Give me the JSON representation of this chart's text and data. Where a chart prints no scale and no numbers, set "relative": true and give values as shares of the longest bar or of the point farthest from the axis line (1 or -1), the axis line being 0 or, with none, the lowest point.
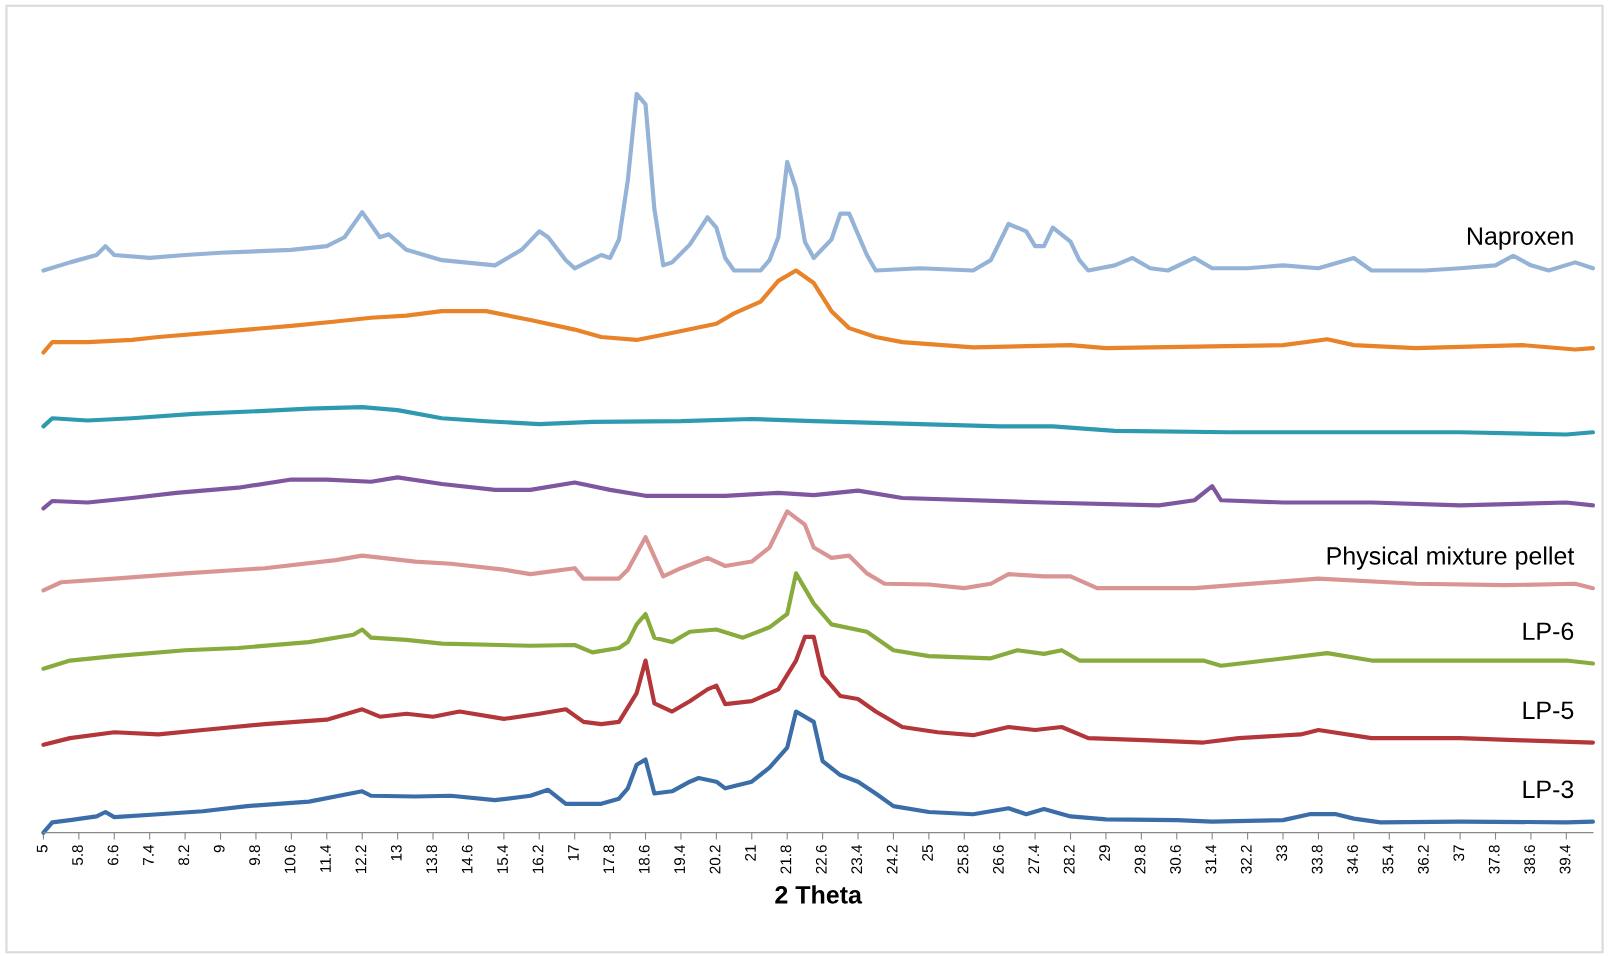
{
  "chart_data": {
    "type": "line",
    "relative": true,
    "xlabel": "2 Theta",
    "xlim": [
      5,
      40
    ],
    "xticks": [
      5,
      5.8,
      6.6,
      7.4,
      8.2,
      9,
      9.8,
      10.6,
      11.4,
      12.2,
      13,
      13.8,
      14.6,
      15.4,
      16.2,
      17,
      17.8,
      18.6,
      19.4,
      20.2,
      21,
      21.8,
      22.6,
      23.4,
      24.2,
      25,
      25.8,
      26.6,
      27.4,
      28.2,
      29,
      29.8,
      30.6,
      31.4,
      32.2,
      33,
      33.8,
      34.6,
      35.4,
      36.2,
      37,
      37.8,
      38.6,
      39.4
    ],
    "grid": false,
    "legend": false,
    "marker": "none",
    "line_style": "solid",
    "series": [
      {
        "name": "Naproxen",
        "color": "#95b3d7",
        "x": [
          5,
          5.6,
          6.2,
          6.4,
          6.6,
          7.4,
          8.2,
          9,
          10.6,
          11.4,
          11.8,
          12.2,
          12.6,
          12.8,
          13.2,
          14,
          15.2,
          15.8,
          16.2,
          16.4,
          16.8,
          17,
          17.6,
          17.8,
          18,
          18.2,
          18.4,
          18.6,
          18.8,
          19,
          19.2,
          19.6,
          20,
          20.2,
          20.4,
          20.6,
          21.2,
          21.4,
          21.6,
          21.8,
          22,
          22.2,
          22.4,
          22.8,
          23,
          23.2,
          23.6,
          23.8,
          24.8,
          26,
          26.4,
          26.8,
          27.2,
          27.4,
          27.6,
          27.8,
          28.2,
          28.4,
          28.6,
          29.2,
          29.6,
          30,
          30.4,
          31,
          31.4,
          32.2,
          33,
          33.8,
          34.6,
          35,
          36.2,
          37,
          37.8,
          38.2,
          38.6,
          39,
          39.6,
          40
        ],
        "values": [
          0.761,
          0.772,
          0.782,
          0.794,
          0.782,
          0.778,
          0.782,
          0.785,
          0.789,
          0.794,
          0.806,
          0.84,
          0.806,
          0.81,
          0.789,
          0.775,
          0.768,
          0.789,
          0.814,
          0.806,
          0.775,
          0.764,
          0.782,
          0.778,
          0.803,
          0.883,
          1.0,
          0.986,
          0.844,
          0.768,
          0.772,
          0.796,
          0.833,
          0.819,
          0.778,
          0.761,
          0.761,
          0.775,
          0.806,
          0.908,
          0.872,
          0.8,
          0.778,
          0.803,
          0.838,
          0.838,
          0.782,
          0.761,
          0.764,
          0.761,
          0.775,
          0.824,
          0.814,
          0.794,
          0.794,
          0.819,
          0.8,
          0.775,
          0.761,
          0.768,
          0.778,
          0.764,
          0.761,
          0.778,
          0.764,
          0.764,
          0.768,
          0.764,
          0.778,
          0.761,
          0.761,
          0.764,
          0.768,
          0.781,
          0.768,
          0.761,
          0.772,
          0.764
        ]
      },
      {
        "color": "#e8832a",
        "x": [
          5,
          5.2,
          6,
          7,
          7.6,
          9,
          10.6,
          11.6,
          12.4,
          13.2,
          14,
          15,
          16,
          17,
          17.6,
          18.4,
          19,
          20.2,
          20.6,
          21.2,
          21.6,
          22,
          22.4,
          22.8,
          23.2,
          23.8,
          24.4,
          26,
          28.2,
          29,
          33,
          34,
          34.6,
          36,
          38.4,
          39.6,
          40
        ],
        "values": [
          0.65,
          0.664,
          0.664,
          0.667,
          0.671,
          0.678,
          0.686,
          0.692,
          0.697,
          0.7,
          0.706,
          0.706,
          0.694,
          0.681,
          0.671,
          0.667,
          0.674,
          0.689,
          0.703,
          0.719,
          0.747,
          0.761,
          0.744,
          0.706,
          0.683,
          0.671,
          0.664,
          0.657,
          0.66,
          0.656,
          0.66,
          0.668,
          0.66,
          0.656,
          0.66,
          0.654,
          0.656
        ]
      },
      {
        "color": "#2e9ab0",
        "x": [
          5,
          5.2,
          6,
          7,
          8.4,
          10,
          11,
          12.2,
          13,
          14,
          15,
          16.2,
          17.4,
          19.4,
          21,
          22.4,
          24.8,
          26.6,
          27.8,
          29.2,
          31.8,
          34.6,
          37,
          39.4,
          40
        ],
        "values": [
          0.55,
          0.561,
          0.558,
          0.561,
          0.567,
          0.571,
          0.574,
          0.576,
          0.572,
          0.561,
          0.557,
          0.553,
          0.556,
          0.557,
          0.56,
          0.557,
          0.553,
          0.55,
          0.55,
          0.544,
          0.542,
          0.542,
          0.542,
          0.539,
          0.542
        ]
      },
      {
        "color": "#7e57a0",
        "x": [
          5,
          5.2,
          6,
          7,
          8,
          9.4,
          10.6,
          11.4,
          12.4,
          13,
          14,
          15.2,
          16,
          17,
          17.8,
          18.6,
          20.4,
          21.6,
          22.4,
          23.4,
          24.4,
          27.6,
          30.2,
          31,
          31.4,
          31.6,
          33,
          35,
          37,
          39.4,
          40
        ],
        "values": [
          0.439,
          0.449,
          0.447,
          0.453,
          0.46,
          0.467,
          0.478,
          0.478,
          0.475,
          0.481,
          0.472,
          0.464,
          0.464,
          0.474,
          0.464,
          0.456,
          0.456,
          0.46,
          0.457,
          0.463,
          0.453,
          0.447,
          0.443,
          0.45,
          0.469,
          0.45,
          0.447,
          0.447,
          0.443,
          0.447,
          0.443
        ]
      },
      {
        "name": "Physical mixture pellet",
        "color": "#d99594",
        "x": [
          5,
          5.4,
          6.6,
          8.2,
          10,
          11.6,
          12.2,
          13.4,
          14.2,
          15.4,
          16,
          17,
          17.2,
          18,
          18.2,
          18.6,
          19,
          19.4,
          20,
          20.4,
          21,
          21.4,
          21.8,
          22.2,
          22.4,
          22.8,
          23.2,
          23.6,
          24,
          25,
          25.8,
          26.4,
          26.8,
          27.6,
          28.2,
          28.8,
          31,
          33.8,
          36,
          38,
          39.6,
          40
        ],
        "values": [
          0.328,
          0.339,
          0.344,
          0.351,
          0.358,
          0.369,
          0.375,
          0.367,
          0.364,
          0.356,
          0.35,
          0.358,
          0.344,
          0.344,
          0.356,
          0.4,
          0.347,
          0.358,
          0.372,
          0.361,
          0.367,
          0.386,
          0.435,
          0.417,
          0.386,
          0.372,
          0.375,
          0.351,
          0.337,
          0.336,
          0.331,
          0.337,
          0.35,
          0.347,
          0.347,
          0.331,
          0.331,
          0.344,
          0.337,
          0.335,
          0.337,
          0.331
        ]
      },
      {
        "name": "LP-6",
        "color": "#88ab3e",
        "x": [
          5,
          5.6,
          6.6,
          8.2,
          9.4,
          11,
          12,
          12.2,
          12.4,
          13.2,
          14,
          16,
          17,
          17.4,
          18,
          18.2,
          18.4,
          18.6,
          18.8,
          19.2,
          19.6,
          20.2,
          20.8,
          21.4,
          21.8,
          22,
          22.4,
          22.8,
          23.6,
          24.2,
          25,
          26.4,
          27,
          27.6,
          28,
          28.4,
          31.2,
          31.6,
          32.6,
          34,
          35,
          37,
          39.4,
          40
        ],
        "values": [
          0.222,
          0.233,
          0.239,
          0.247,
          0.25,
          0.258,
          0.268,
          0.275,
          0.264,
          0.261,
          0.256,
          0.253,
          0.254,
          0.244,
          0.25,
          0.258,
          0.282,
          0.296,
          0.264,
          0.258,
          0.272,
          0.275,
          0.264,
          0.278,
          0.296,
          0.351,
          0.31,
          0.282,
          0.272,
          0.247,
          0.239,
          0.236,
          0.247,
          0.242,
          0.247,
          0.233,
          0.233,
          0.226,
          0.233,
          0.243,
          0.233,
          0.233,
          0.233,
          0.229
        ]
      },
      {
        "name": "LP-5",
        "color": "#b3373a",
        "x": [
          5,
          5.6,
          6.6,
          7.6,
          8.6,
          10,
          11.4,
          12.2,
          12.6,
          13.2,
          13.8,
          14.4,
          15.4,
          16.2,
          16.8,
          17.2,
          17.6,
          18,
          18.4,
          18.6,
          18.8,
          19.2,
          19.6,
          20,
          20.2,
          20.4,
          21,
          21.6,
          22,
          22.2,
          22.4,
          22.6,
          23,
          23.4,
          23.8,
          24.4,
          25.2,
          26,
          26.8,
          27.4,
          28,
          28.6,
          30,
          31.2,
          32,
          33.4,
          33.8,
          35,
          37,
          38.4,
          40
        ],
        "values": [
          0.119,
          0.128,
          0.136,
          0.133,
          0.139,
          0.147,
          0.153,
          0.167,
          0.157,
          0.161,
          0.157,
          0.164,
          0.154,
          0.161,
          0.167,
          0.15,
          0.147,
          0.15,
          0.189,
          0.233,
          0.175,
          0.164,
          0.178,
          0.194,
          0.199,
          0.174,
          0.178,
          0.194,
          0.233,
          0.265,
          0.265,
          0.213,
          0.185,
          0.181,
          0.164,
          0.143,
          0.136,
          0.132,
          0.143,
          0.139,
          0.143,
          0.128,
          0.125,
          0.122,
          0.128,
          0.133,
          0.139,
          0.128,
          0.128,
          0.125,
          0.122
        ]
      },
      {
        "name": "LP-3",
        "color": "#3b6ea8",
        "x": [
          5,
          5.2,
          5.6,
          6.2,
          6.4,
          6.6,
          7.6,
          8.6,
          9.6,
          11,
          12.2,
          12.4,
          13.4,
          14.2,
          15.2,
          16,
          16.4,
          16.8,
          17.6,
          18,
          18.2,
          18.4,
          18.6,
          18.8,
          19.2,
          19.6,
          19.8,
          20.2,
          20.4,
          21,
          21.4,
          21.8,
          22,
          22.4,
          22.6,
          23,
          23.4,
          23.8,
          24.2,
          25,
          26,
          26.8,
          27.2,
          27.6,
          28.2,
          29,
          30.6,
          31.4,
          33,
          33.6,
          34.2,
          34.6,
          35.2,
          37,
          39.4,
          40
        ],
        "values": [
          0.0,
          0.014,
          0.017,
          0.022,
          0.028,
          0.021,
          0.025,
          0.029,
          0.036,
          0.042,
          0.056,
          0.05,
          0.049,
          0.05,
          0.044,
          0.05,
          0.058,
          0.039,
          0.039,
          0.046,
          0.06,
          0.092,
          0.099,
          0.053,
          0.056,
          0.069,
          0.074,
          0.069,
          0.06,
          0.069,
          0.088,
          0.115,
          0.164,
          0.15,
          0.097,
          0.078,
          0.069,
          0.053,
          0.036,
          0.028,
          0.025,
          0.033,
          0.025,
          0.032,
          0.022,
          0.018,
          0.017,
          0.015,
          0.017,
          0.025,
          0.025,
          0.019,
          0.014,
          0.015,
          0.014,
          0.015
        ]
      }
    ]
  }
}
